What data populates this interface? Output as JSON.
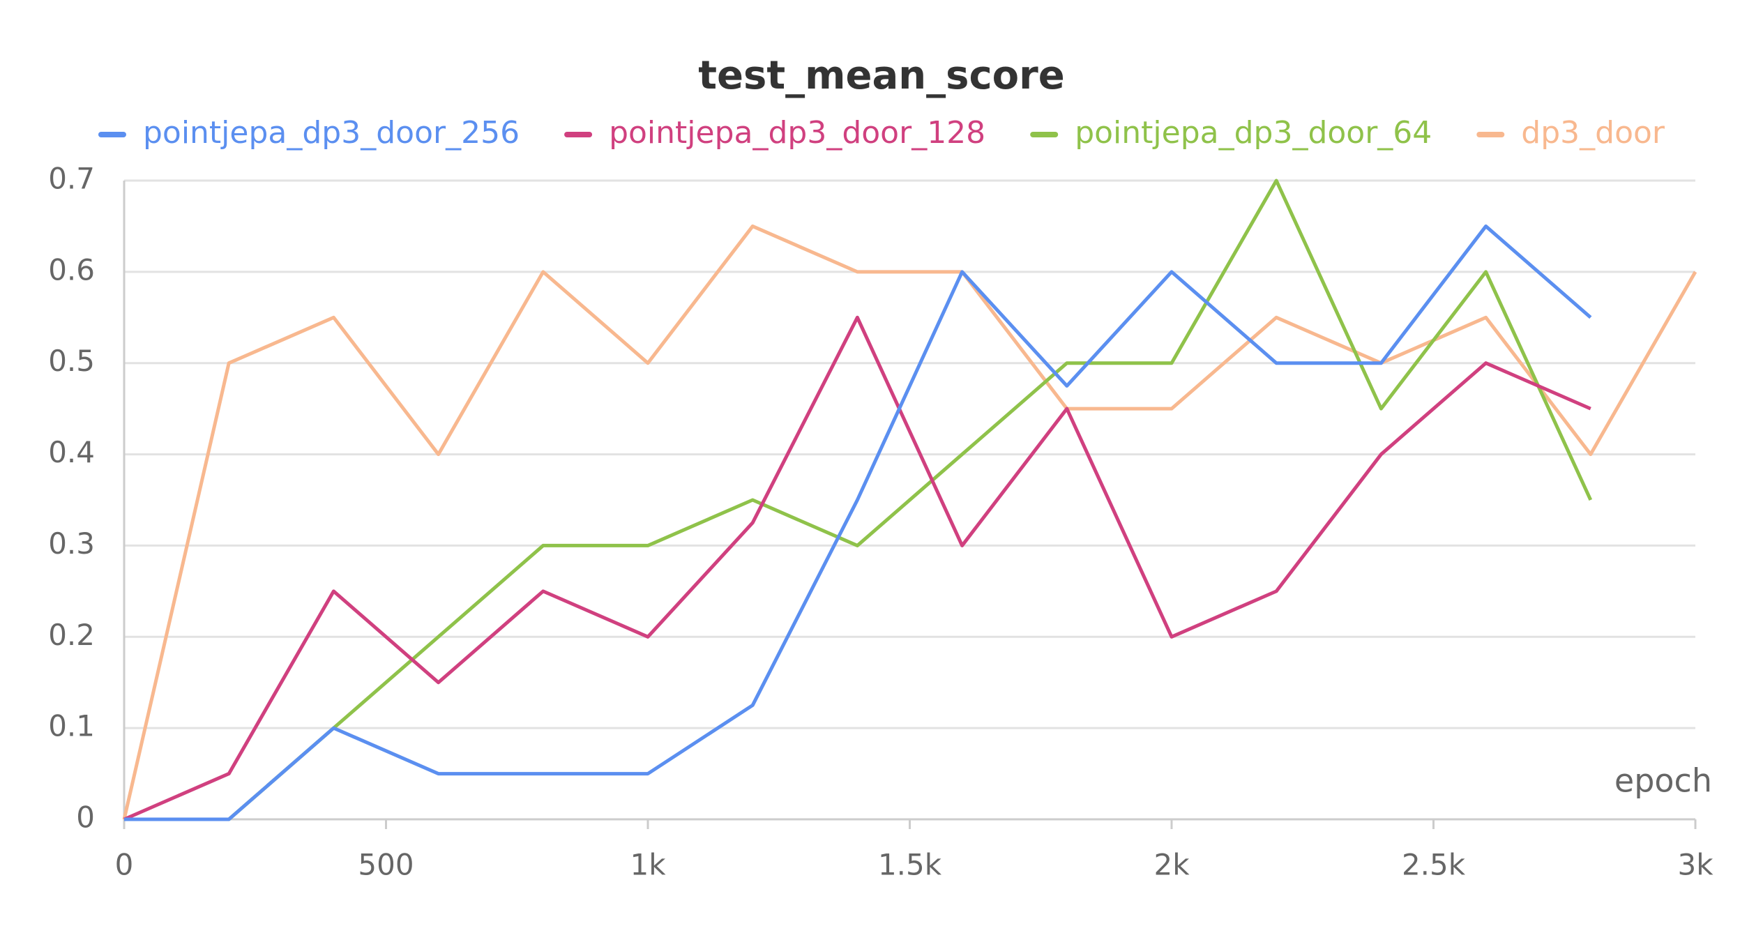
{
  "chart_data": {
    "type": "line",
    "title": "test_mean_score",
    "x_label": "epoch",
    "series": [
      {
        "name": "pointjepa_dp3_door_256",
        "color": "#5b8ff0",
        "x": [
          0,
          200,
          400,
          600,
          800,
          1000,
          1200,
          1400,
          1600,
          1800,
          2000,
          2200,
          2400,
          2600,
          2800
        ],
        "values": [
          0,
          0,
          0.1,
          0.05,
          0.05,
          0.05,
          0.125,
          0.35,
          0.6,
          0.475,
          0.6,
          0.5,
          0.5,
          0.65,
          0.55
        ]
      },
      {
        "name": "pointjepa_dp3_door_128",
        "color": "#d0407f",
        "x": [
          0,
          200,
          400,
          600,
          800,
          1000,
          1200,
          1400,
          1600,
          1800,
          2000,
          2200,
          2400,
          2600,
          2800
        ],
        "values": [
          0,
          0.05,
          0.25,
          0.15,
          0.25,
          0.2,
          0.325,
          0.55,
          0.3,
          0.45,
          0.2,
          0.25,
          0.4,
          0.5,
          0.45
        ]
      },
      {
        "name": "pointjepa_dp3_door_64",
        "color": "#8fc24a",
        "x": [
          0,
          200,
          400,
          600,
          800,
          1000,
          1200,
          1400,
          1600,
          1800,
          2000,
          2200,
          2400,
          2600,
          2800
        ],
        "values": [
          0,
          0,
          0.1,
          0.2,
          0.3,
          0.3,
          0.35,
          0.3,
          0.4,
          0.5,
          0.5,
          0.7,
          0.45,
          0.6,
          0.35
        ]
      },
      {
        "name": "dp3_door",
        "color": "#f8b88f",
        "x": [
          0,
          200,
          400,
          600,
          800,
          1000,
          1200,
          1400,
          1600,
          1800,
          2000,
          2200,
          2400,
          2600,
          2800,
          3000
        ],
        "values": [
          0,
          0.5,
          0.55,
          0.4,
          0.6,
          0.5,
          0.65,
          0.6,
          0.6,
          0.45,
          0.45,
          0.55,
          0.5,
          0.55,
          0.4,
          0.6
        ]
      }
    ],
    "xlim": [
      0,
      3000
    ],
    "xticks": [
      0,
      500,
      {
        "value": 1000,
        "label": "1k"
      },
      {
        "value": 1500,
        "label": "1.5k"
      },
      {
        "value": 2000,
        "label": "2k"
      },
      {
        "value": 2500,
        "label": "2.5k"
      },
      {
        "value": 3000,
        "label": "3k"
      }
    ],
    "ylim": [
      0,
      0.7
    ],
    "yticks": [
      0,
      0.1,
      0.2,
      0.3,
      0.4,
      0.5,
      0.6,
      0.7
    ],
    "grid": true
  }
}
